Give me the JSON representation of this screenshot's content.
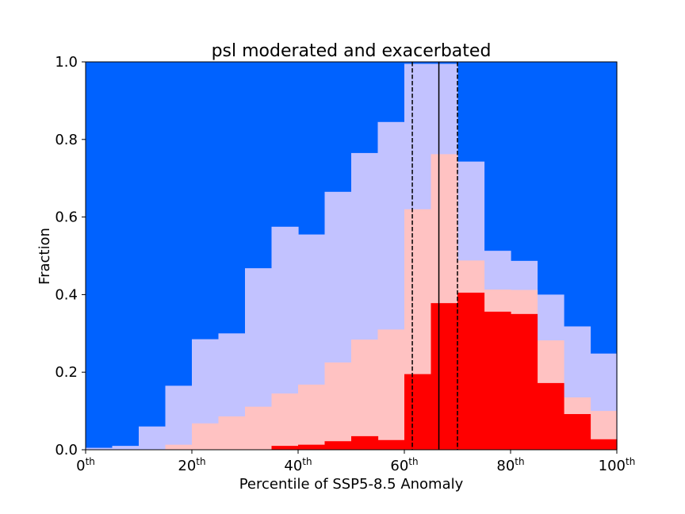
{
  "chart_data": {
    "type": "bar",
    "title": "psl moderated and exacerbated",
    "xlabel": "Percentile of SSP5-8.5 Anomaly",
    "ylabel": "Fraction",
    "xlim": [
      0,
      100
    ],
    "ylim": [
      0,
      1
    ],
    "x_ticks": [
      {
        "value": 0,
        "base": "0",
        "sup": "th"
      },
      {
        "value": 20,
        "base": "20",
        "sup": "th"
      },
      {
        "value": 40,
        "base": "40",
        "sup": "th"
      },
      {
        "value": 60,
        "base": "60",
        "sup": "th"
      },
      {
        "value": 80,
        "base": "80",
        "sup": "th"
      },
      {
        "value": 100,
        "base": "100",
        "sup": "th"
      }
    ],
    "y_ticks": [
      "0.0",
      "0.2",
      "0.4",
      "0.6",
      "0.8",
      "1.0"
    ],
    "grid": false,
    "bin_edges": [
      0,
      5,
      10,
      15,
      20,
      25,
      30,
      35,
      40,
      45,
      50,
      55,
      60,
      61.5,
      65,
      70,
      75,
      80,
      85,
      90,
      95,
      100
    ],
    "series": [
      {
        "color": "#0062ff",
        "values": [
          1,
          1,
          1,
          1,
          1,
          1,
          1,
          1,
          1,
          1,
          1,
          1,
          1,
          1,
          1,
          1,
          1,
          1,
          1,
          1,
          1
        ]
      },
      {
        "color": "#c2c2ff",
        "values": [
          0.005,
          0.01,
          0.06,
          0.165,
          0.285,
          0.3,
          0.468,
          0.575,
          0.555,
          0.665,
          0.765,
          0.845,
          0.995,
          0.995,
          0.995,
          0.743,
          0.513,
          0.487,
          0.4,
          0.318,
          0.248
        ]
      },
      {
        "color": "#ffc2c2",
        "values": [
          0,
          0,
          0,
          0.013,
          0.068,
          0.086,
          0.111,
          0.145,
          0.168,
          0.225,
          0.284,
          0.31,
          0.62,
          0.62,
          0.762,
          0.488,
          0.413,
          0.412,
          0.282,
          0.135,
          0.1
        ]
      },
      {
        "color": "#ff0000",
        "values": [
          0,
          0,
          0,
          0,
          0,
          0,
          0,
          0.01,
          0.013,
          0.022,
          0.035,
          0.025,
          0.195,
          0.195,
          0.378,
          0.405,
          0.356,
          0.35,
          0.172,
          0.092,
          0.027
        ]
      }
    ],
    "vlines": [
      {
        "x": 61.5,
        "style": "dashed"
      },
      {
        "x": 66.5,
        "style": "solid"
      },
      {
        "x": 70,
        "style": "dashed"
      }
    ]
  }
}
